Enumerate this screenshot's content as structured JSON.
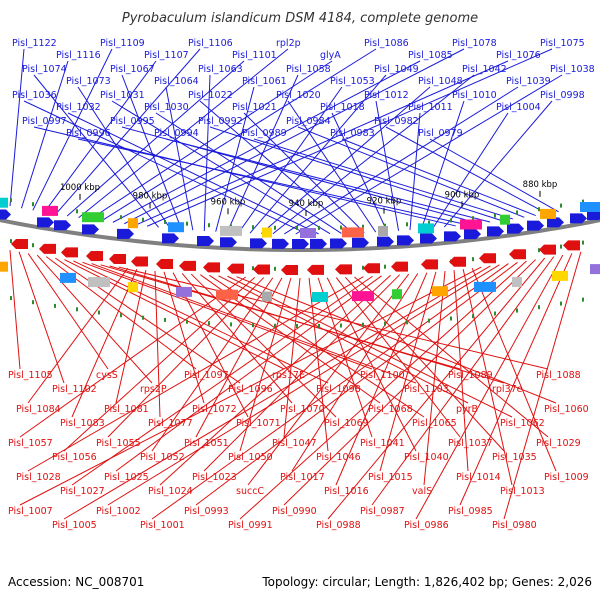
{
  "title": "Pyrobaculum islandicum DSM 4184, complete genome",
  "accession": "Accession: NC_008701",
  "footer": "Topology: circular; Length: 1,826,402 bp; Genes: 2,026",
  "colors": {
    "forward": "#1a1adb",
    "reverse": "#e01010",
    "backbone": "#808080",
    "marker": "#2e8b2e"
  },
  "ticks": [
    "1000 kbp",
    "980 kbp",
    "960 kbp",
    "940 kbp",
    "920 kbp",
    "900 kbp",
    "880 kbp"
  ],
  "forward_labels": [
    "Pisl_1122",
    "Pisl_1116",
    "Pisl_1109",
    "Pisl_1107",
    "Pisl_1106",
    "Pisl_1101",
    "rpl2p",
    "glyA",
    "Pisl_1086",
    "Pisl_1085",
    "Pisl_1078",
    "Pisl_1076",
    "Pisl_1075",
    "Pisl_1074",
    "Pisl_1073",
    "Pisl_1067",
    "Pisl_1064",
    "Pisl_1063",
    "Pisl_1061",
    "Pisl_1058",
    "Pisl_1053",
    "Pisl_1049",
    "Pisl_1048",
    "Pisl_1042",
    "Pisl_1039",
    "Pisl_1038",
    "Pisl_1036",
    "Pisl_1032",
    "Pisl_1031",
    "Pisl_1030",
    "Pisl_1022",
    "Pisl_1021",
    "Pisl_1020",
    "Pisl_1018",
    "Pisl_1012",
    "Pisl_1011",
    "Pisl_1010",
    "Pisl_1004",
    "Pisl_0998",
    "Pisl_0997",
    "Pisl_0996",
    "Pisl_0995",
    "Pisl_0994",
    "Pisl_0992",
    "Pisl_0989",
    "Pisl_0984",
    "Pisl_0983",
    "Pisl_0982",
    "Pisl_0979"
  ],
  "reverse_labels": [
    "Pisl_1105",
    "Pisl_1102",
    "cysS",
    "rps2P",
    "Pisl_1097",
    "Pisl_1096",
    "rps17E",
    "Pisl_1098",
    "Pisl_1100",
    "Pisl_1103",
    "Pisl_1089",
    "rpl37e",
    "Pisl_1088",
    "Pisl_1084",
    "Pisl_1083",
    "Pisl_1081",
    "Pisl_1077",
    "Pisl_1072",
    "Pisl_1071",
    "Pisl_1070",
    "Pisl_1069",
    "Pisl_1068",
    "Pisl_1065",
    "pyrB",
    "Pisl_1062",
    "Pisl_1060",
    "Pisl_1057",
    "Pisl_1056",
    "Pisl_1055",
    "Pisl_1052",
    "Pisl_1051",
    "Pisl_1050",
    "Pisl_1047",
    "Pisl_1046",
    "Pisl_1041",
    "Pisl_1040",
    "Pisl_1037",
    "Pisl_1035",
    "Pisl_1029",
    "Pisl_1028",
    "Pisl_1027",
    "Pisl_1025",
    "Pisl_1024",
    "Pisl_1023",
    "succC",
    "Pisl_1017",
    "Pisl_1016",
    "Pisl_1015",
    "valS",
    "Pisl_1014",
    "Pisl_1013",
    "Pisl_1009",
    "Pisl_1007",
    "Pisl_1005",
    "Pisl_1002",
    "Pisl_1001",
    "Pisl_0993",
    "Pisl_0991",
    "Pisl_0990",
    "Pisl_0988",
    "Pisl_0987",
    "Pisl_0986",
    "Pisl_0985",
    "Pisl_0980"
  ]
}
